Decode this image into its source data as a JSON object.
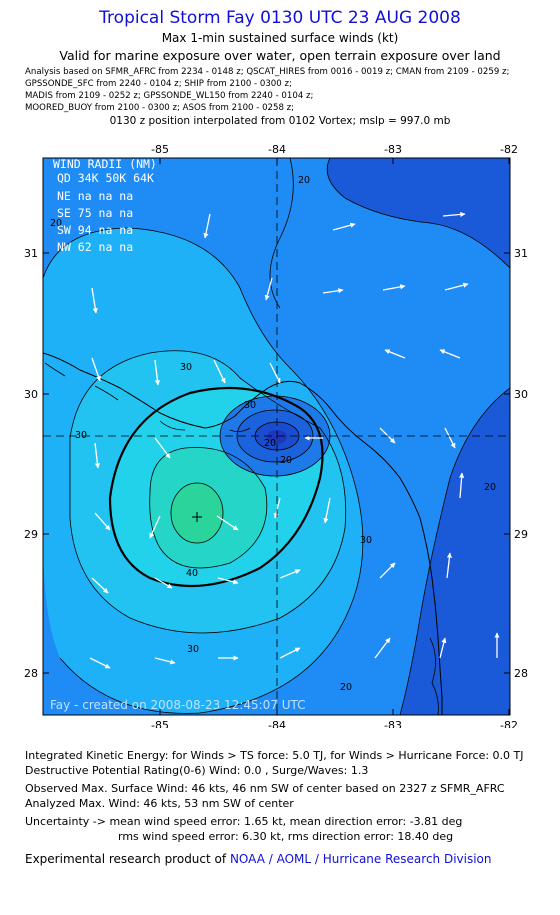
{
  "header": {
    "title": "Tropical Storm Fay 0130 UTC 23 AUG 2008",
    "subtitle1": "Max 1-min sustained surface winds (kt)",
    "subtitle2": "Valid for marine exposure over water, open terrain exposure over land",
    "analysis_lines": [
      "Analysis based on   SFMR_AFRC from 2234 - 0148 z;  QSCAT_HIRES from 0016 - 0019 z;  CMAN from 2109 - 0259 z;",
      "GPSSONDE_SFC from 2240 - 0104 z;   SHIP from 2100 - 0300 z;",
      "MADIS from 2109 - 0252 z;  GPSSONDE_WL150 from 2240 - 0104 z;",
      "MOORED_BUOY from 2100 - 0300 z;   ASOS from 2100 - 0258 z;"
    ],
    "position_line": "0130 z position interpolated from 0102 Vortex; mslp = 997.0 mb"
  },
  "map": {
    "lon_ticks": [
      "-85",
      "-84",
      "-83",
      "-82"
    ],
    "lat_ticks": [
      "31",
      "30",
      "29",
      "28"
    ],
    "wind_radii": {
      "title": "WIND RADII (NM)",
      "header": "QD 34K 50K 64K",
      "rows": [
        "NE  na  na  na",
        "SE  75  na  na",
        "SW  94  na  na",
        "NW  62  na  na"
      ]
    },
    "contour_labels": [
      "20",
      "30",
      "40",
      "20",
      "30",
      "30",
      "20",
      "20",
      "30",
      "20",
      "20",
      "30"
    ],
    "created": "Fay - created on 2008-08-23 12:45:07 UTC",
    "colors": {
      "ocean": "#1f8bf5",
      "deep": "#1a5ad8",
      "mid": "#1fb1f7",
      "light": "#22d1ea",
      "peak": "#2bd49b"
    }
  },
  "footer": {
    "lines": [
      "Integrated Kinetic Energy:  for Winds > TS force: 5.0 TJ,  for Winds > Hurricane Force: 0.0 TJ",
      "Destructive Potential Rating(0-6)   Wind: 0.0 , Surge/Waves: 1.3",
      "Observed Max. Surface Wind: 46 kts, 46 nm SW of center based on 2327 z SFMR_AFRC",
      "Analyzed Max. Wind: 46 kts, 53 nm SW of center",
      "Uncertainty -> mean wind speed error: 1.65 kt,   mean direction error:  -3.81 deg",
      "rms wind speed error: 6.30 kt,   rms direction error: 18.40 deg"
    ],
    "credit_prefix": "Experimental research product of",
    "credit_org": "NOAA / AOML / Hurricane Research Division"
  }
}
